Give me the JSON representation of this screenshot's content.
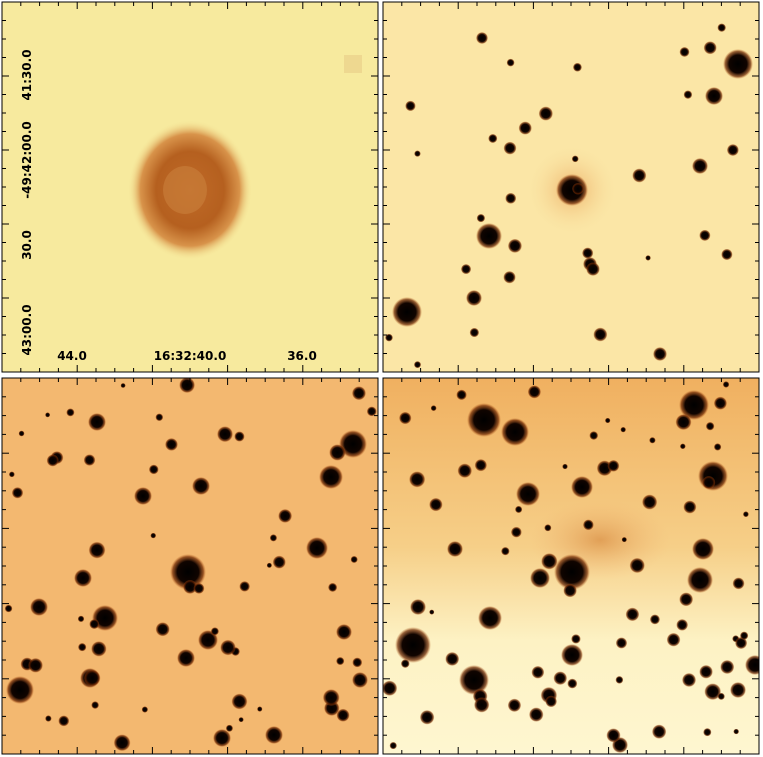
{
  "coordinate_labels": {
    "dec": [
      "41:30.0",
      "-49:42:00.0",
      "30.0",
      "43:00.0"
    ],
    "ra": [
      "44.0",
      "16:32:40.0",
      "36.0"
    ]
  }
}
